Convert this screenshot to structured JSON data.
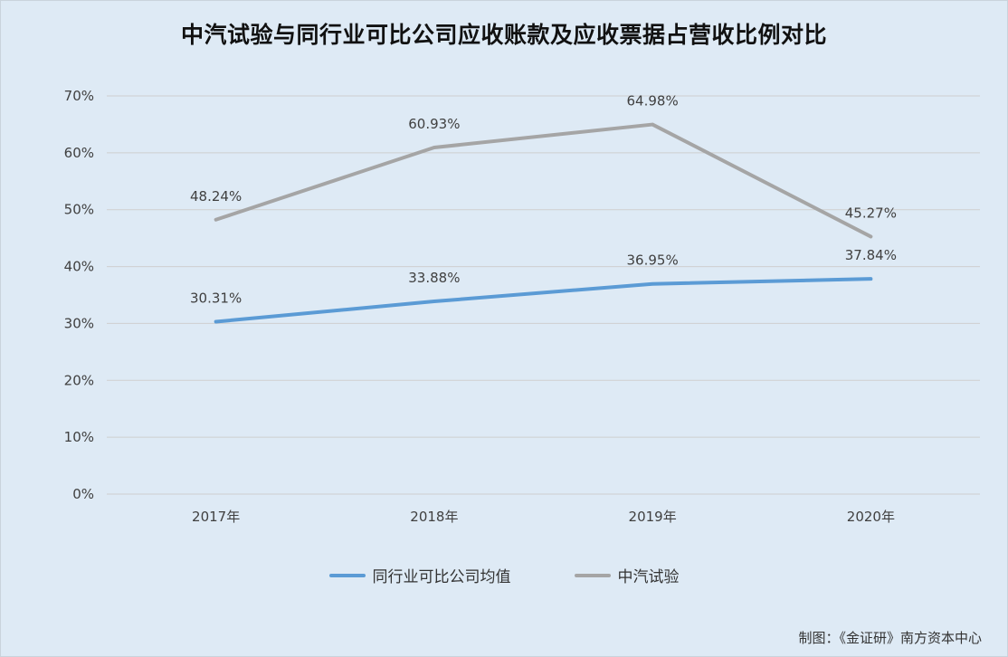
{
  "chart_data": {
    "type": "line",
    "title": "中汽试验与同行业可比公司应收账款及应收票据占营收比例对比",
    "categories": [
      "2017年",
      "2018年",
      "2019年",
      "2020年"
    ],
    "series": [
      {
        "name": "同行业可比公司均值",
        "values": [
          30.31,
          33.88,
          36.95,
          37.84
        ],
        "labels": [
          "30.31%",
          "33.88%",
          "36.95%",
          "37.84%"
        ],
        "color": "#5b9bd5"
      },
      {
        "name": "中汽试验",
        "values": [
          48.24,
          60.93,
          64.98,
          45.27
        ],
        "labels": [
          "48.24%",
          "60.93%",
          "64.98%",
          "45.27%"
        ],
        "color": "#a5a5a5"
      }
    ],
    "yticks": [
      "0%",
      "10%",
      "20%",
      "30%",
      "40%",
      "50%",
      "60%",
      "70%"
    ],
    "ylim": [
      0,
      70
    ],
    "grid": true,
    "legend": "bottom"
  },
  "credit": "制图：《金证研》南方资本中心"
}
